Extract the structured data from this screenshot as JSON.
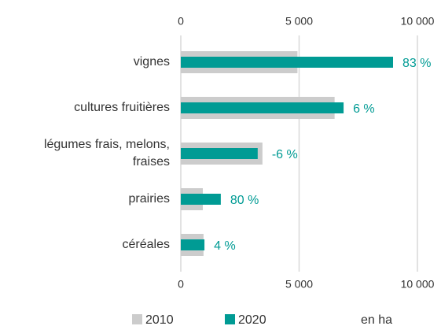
{
  "chart_data": {
    "type": "bar",
    "orientation": "horizontal",
    "categories": [
      "vignes",
      "cultures fruitières",
      "légumes frais, melons,\nfraises",
      "prairies",
      "céréales"
    ],
    "series": [
      {
        "name": "2010",
        "color": "#cccccc",
        "values": [
          4930,
          6500,
          3450,
          930,
          960
        ]
      },
      {
        "name": "2020",
        "color": "#009b94",
        "values": [
          8970,
          6880,
          3250,
          1690,
          1000
        ]
      }
    ],
    "changes": [
      "83 %",
      "6 %",
      "-6 %",
      "80 %",
      "4 %"
    ],
    "xlim": [
      0,
      10000
    ],
    "xticks": [
      0,
      {
        "value": 5000,
        "label": "5 000"
      },
      {
        "value": 10000,
        "label": "10 000"
      }
    ],
    "grid": true,
    "unit": "en ha"
  }
}
